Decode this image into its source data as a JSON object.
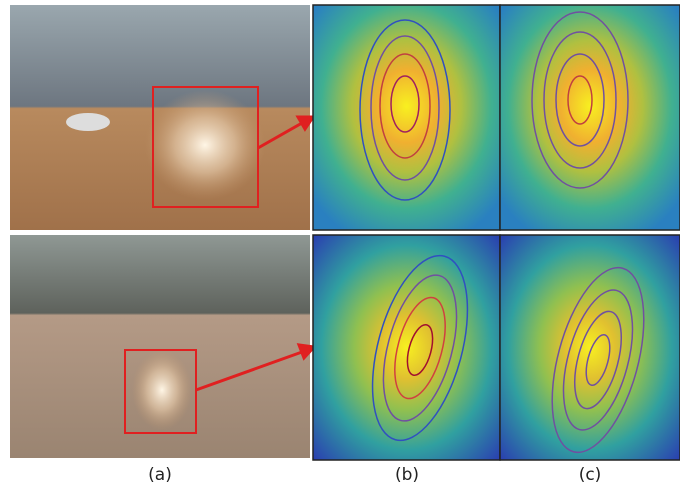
{
  "figure": {
    "labels": [
      "(a)",
      "(b)",
      "(c)"
    ]
  }
}
